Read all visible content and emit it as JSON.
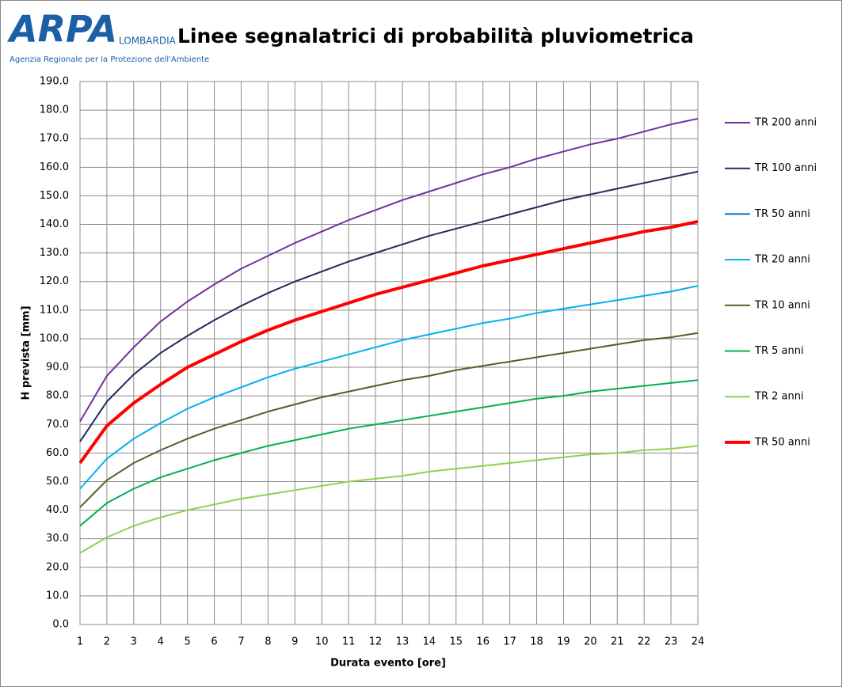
{
  "logo": {
    "name": "ARPA",
    "region": "LOMBARDIA",
    "agency": "Agenzia Regionale per la Protezione dell'Ambiente"
  },
  "chart_data": {
    "type": "line",
    "title": "Linee segnalatrici di probabilità pluviometrica",
    "x_label": "Durata evento [ore]",
    "y_label": "H prevista [mm]",
    "x": [
      1,
      2,
      3,
      4,
      5,
      6,
      7,
      8,
      9,
      10,
      11,
      12,
      13,
      14,
      15,
      16,
      17,
      18,
      19,
      20,
      21,
      22,
      23,
      24
    ],
    "xlim": [
      1,
      24
    ],
    "xticks": [
      1,
      2,
      3,
      4,
      5,
      6,
      7,
      8,
      9,
      10,
      11,
      12,
      13,
      14,
      15,
      16,
      17,
      18,
      19,
      20,
      21,
      22,
      23,
      24
    ],
    "ylim": [
      0,
      190
    ],
    "yticks": [
      {
        "value": 0,
        "label": "0.0"
      },
      {
        "value": 10,
        "label": "10.0"
      },
      {
        "value": 20,
        "label": "20.0"
      },
      {
        "value": 30,
        "label": "30.0"
      },
      {
        "value": 40,
        "label": "40.0"
      },
      {
        "value": 50,
        "label": "50.0"
      },
      {
        "value": 60,
        "label": "60.0"
      },
      {
        "value": 70,
        "label": "70.0"
      },
      {
        "value": 80,
        "label": "80.0"
      },
      {
        "value": 90,
        "label": "90.0"
      },
      {
        "value": 100,
        "label": "100.0"
      },
      {
        "value": 110,
        "label": "110.0"
      },
      {
        "value": 120,
        "label": "120.0"
      },
      {
        "value": 130,
        "label": "130.0"
      },
      {
        "value": 140,
        "label": "140.0"
      },
      {
        "value": 150,
        "label": "150.0"
      },
      {
        "value": 160,
        "label": "160.0"
      },
      {
        "value": 170,
        "label": "170.0"
      },
      {
        "value": 180,
        "label": "180.0"
      },
      {
        "value": 190,
        "label": "190.0"
      }
    ],
    "grid": true,
    "legend": "right",
    "series": [
      {
        "name": "TR 200 anni",
        "color": "#7030a0",
        "line_width": 2,
        "values": [
          71,
          87,
          97,
          106,
          113,
          119,
          124.5,
          129,
          133.5,
          137.5,
          141.5,
          145,
          148.5,
          151.5,
          154.5,
          157.5,
          160,
          163,
          165.5,
          168,
          170,
          172.5,
          175,
          177
        ]
      },
      {
        "name": "TR 100 anni",
        "color": "#1f2d5c",
        "line_width": 2,
        "values": [
          64,
          78,
          87.5,
          95,
          101,
          106.5,
          111.5,
          116,
          120,
          123.5,
          127,
          130,
          133,
          136,
          138.5,
          141,
          143.5,
          146,
          148.5,
          150.5,
          152.5,
          154.5,
          156.5,
          158.5
        ]
      },
      {
        "name": "TR 50 anni",
        "color": "#0070c0",
        "line_width": 2,
        "values": [
          56.5,
          69.5,
          77.5,
          84,
          90,
          94.5,
          99,
          103,
          106.5,
          109.5,
          112.5,
          115.5,
          118,
          120.5,
          123,
          125.5,
          127.5,
          129.5,
          131.5,
          133.5,
          135.5,
          137.5,
          139,
          141
        ]
      },
      {
        "name": "TR 20 anni",
        "color": "#00b0f0",
        "line_width": 2,
        "values": [
          47.5,
          58,
          65,
          70.5,
          75.5,
          79.5,
          83,
          86.5,
          89.5,
          92,
          94.5,
          97,
          99.5,
          101.5,
          103.5,
          105.5,
          107,
          109,
          110.5,
          112,
          113.5,
          115,
          116.5,
          118.5
        ]
      },
      {
        "name": "TR 10 anni",
        "color": "#4f6228",
        "line_width": 2,
        "values": [
          41,
          50.5,
          56.5,
          61,
          65,
          68.5,
          71.5,
          74.5,
          77,
          79.5,
          81.5,
          83.5,
          85.5,
          87,
          89,
          90.5,
          92,
          93.5,
          95,
          96.5,
          98,
          99.5,
          100.5,
          102
        ]
      },
      {
        "name": "TR 5 anni",
        "color": "#00b050",
        "line_width": 2,
        "values": [
          34.5,
          42.5,
          47.5,
          51.5,
          54.5,
          57.5,
          60,
          62.5,
          64.5,
          66.5,
          68.5,
          70,
          71.5,
          73,
          74.5,
          76,
          77.5,
          79,
          80,
          81.5,
          82.5,
          83.5,
          84.5,
          85.5
        ]
      },
      {
        "name": "TR 2 anni",
        "color": "#92d050",
        "line_width": 2,
        "values": [
          25,
          30.5,
          34.5,
          37.5,
          40,
          42,
          44,
          45.5,
          47,
          48.5,
          50,
          51,
          52,
          53.5,
          54.5,
          55.5,
          56.5,
          57.5,
          58.5,
          59.5,
          60,
          61,
          61.5,
          62.5
        ]
      },
      {
        "name": "TR 50 anni",
        "color": "#ff0000",
        "line_width": 4,
        "values": [
          56.5,
          69.5,
          77.5,
          84,
          90,
          94.5,
          99,
          103,
          106.5,
          109.5,
          112.5,
          115.5,
          118,
          120.5,
          123,
          125.5,
          127.5,
          129.5,
          131.5,
          133.5,
          135.5,
          137.5,
          139,
          141
        ]
      }
    ]
  }
}
